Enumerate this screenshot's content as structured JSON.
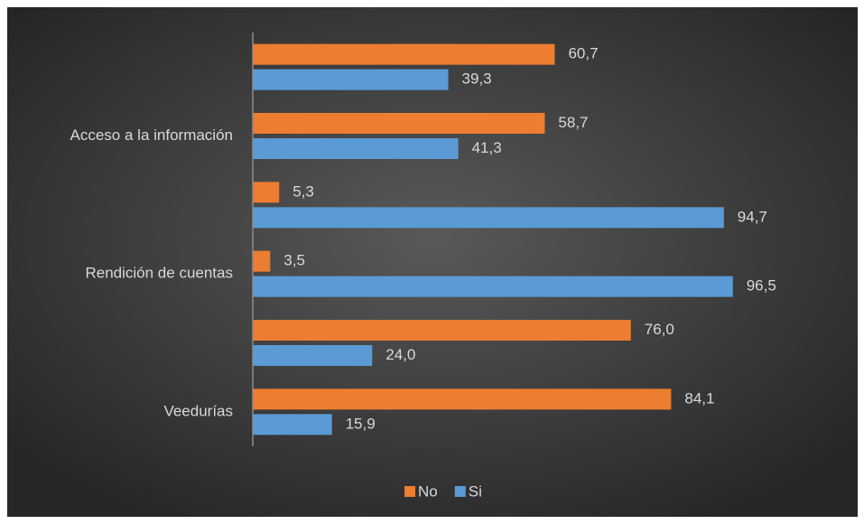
{
  "chart_data": {
    "type": "hbar",
    "categories": [
      null,
      "Acceso a la información",
      null,
      "Rendición de cuentas",
      null,
      "Veedurías"
    ],
    "series": [
      {
        "name": "No",
        "color": "#ed7d31",
        "values": [
          60.7,
          58.7,
          5.3,
          3.5,
          76.0,
          84.1
        ],
        "value_labels": [
          "60,7",
          "58,7",
          "5,3",
          "3,5",
          "76,0",
          "84,1"
        ]
      },
      {
        "name": "Si",
        "color": "#5b9bd5",
        "values": [
          39.3,
          41.3,
          94.7,
          96.5,
          24.0,
          15.9
        ],
        "value_labels": [
          "39,3",
          "41,3",
          "94,7",
          "96,5",
          "24,0",
          "15,9"
        ]
      }
    ],
    "xlim": [
      0,
      100
    ],
    "legend": "bottom"
  }
}
